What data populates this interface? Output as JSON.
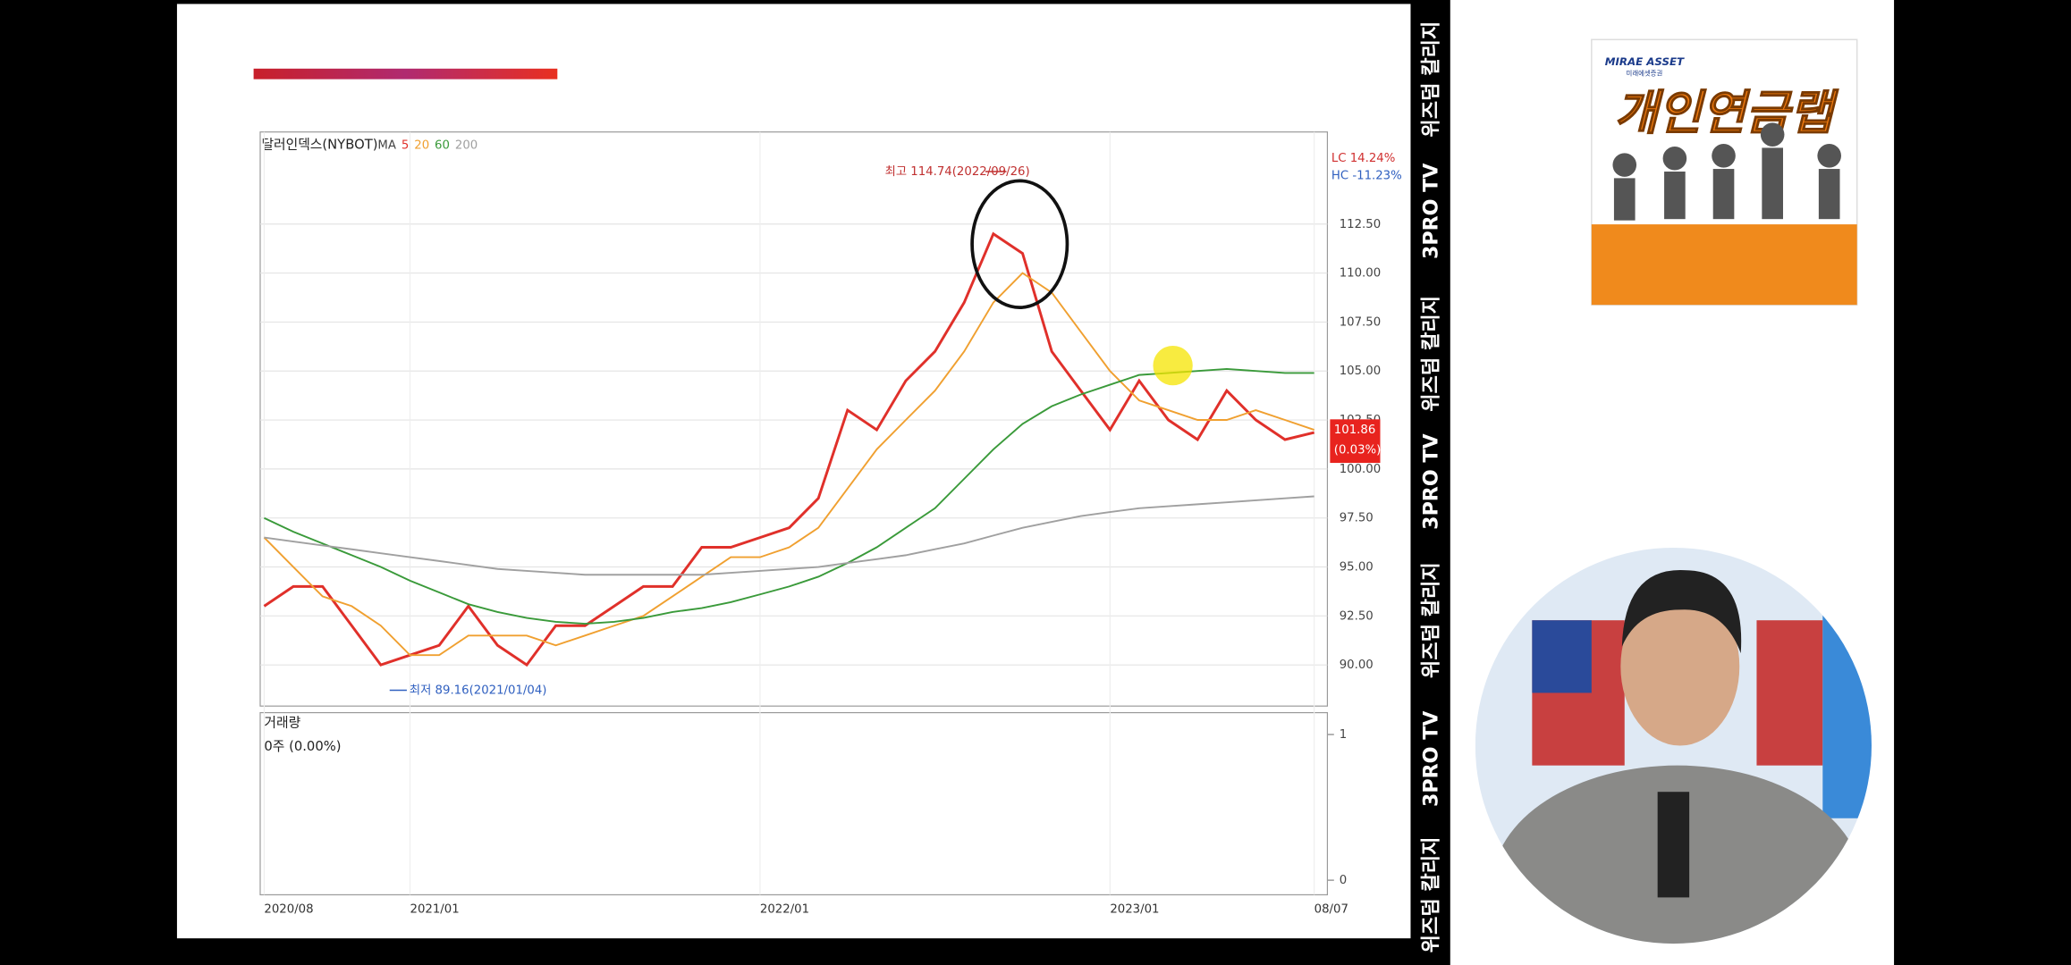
{
  "chart_data": {
    "type": "line",
    "title": "달러인덱스(NYBOT)",
    "legend_label": "MA",
    "categories": [
      "2020/08",
      null,
      null,
      null,
      null,
      "2021/01",
      null,
      null,
      null,
      null,
      null,
      null,
      null,
      null,
      null,
      null,
      null,
      "2022/01",
      null,
      null,
      null,
      null,
      null,
      null,
      null,
      null,
      null,
      null,
      null,
      "2023/01",
      null,
      null,
      null,
      null,
      null,
      null,
      "08/07"
    ],
    "series": [
      {
        "name": "5",
        "color": "#e0302a",
        "values": [
          93,
          94,
          94,
          92,
          90,
          90.5,
          91,
          93,
          91,
          90,
          92,
          92,
          93,
          94,
          94,
          96,
          96,
          96.5,
          97,
          98.5,
          103,
          102,
          104.5,
          106,
          108.5,
          112,
          111,
          106,
          104,
          102,
          104.5,
          102.5,
          101.5,
          104,
          102.5,
          101.5,
          101.86
        ]
      },
      {
        "name": "20",
        "color": "#f0a030",
        "values": [
          96.5,
          95,
          93.5,
          93,
          92,
          90.5,
          90.5,
          91.5,
          91.5,
          91.5,
          91,
          91.5,
          92,
          92.5,
          93.5,
          94.5,
          95.5,
          95.5,
          96,
          97,
          99,
          101,
          102.5,
          104,
          106,
          108.5,
          110,
          109,
          107,
          105,
          103.5,
          103,
          102.5,
          102.5,
          103,
          102.5,
          102
        ]
      },
      {
        "name": "60",
        "color": "#3a9a3a",
        "values": [
          97.5,
          96.8,
          96.2,
          95.6,
          95,
          94.3,
          93.7,
          93.1,
          92.7,
          92.4,
          92.2,
          92.1,
          92.2,
          92.4,
          92.7,
          92.9,
          93.2,
          93.6,
          94,
          94.5,
          95.2,
          96,
          97,
          98,
          99.5,
          101,
          102.3,
          103.2,
          103.8,
          104.3,
          104.8,
          104.9,
          105,
          105.1,
          105,
          104.9,
          104.9
        ]
      },
      {
        "name": "200",
        "color": "#a0a0a0",
        "values": [
          96.5,
          96.3,
          96.1,
          95.9,
          95.7,
          95.5,
          95.3,
          95.1,
          94.9,
          94.8,
          94.7,
          94.6,
          94.6,
          94.6,
          94.6,
          94.6,
          94.7,
          94.8,
          94.9,
          95.0,
          95.2,
          95.4,
          95.6,
          95.9,
          96.2,
          96.6,
          97,
          97.3,
          97.6,
          97.8,
          98,
          98.1,
          98.2,
          98.3,
          98.4,
          98.5,
          98.6
        ]
      }
    ],
    "ylim": [
      87.9,
      117.2
    ],
    "yticks": [
      {
        "value": 90,
        "label": "90.00"
      },
      {
        "value": 92.5,
        "label": "92.50"
      },
      {
        "value": 95,
        "label": "95.00"
      },
      {
        "value": 97.5,
        "label": "97.50"
      },
      {
        "value": 100,
        "label": "100.00"
      },
      {
        "value": 102.5,
        "label": "102.50"
      },
      {
        "value": 105,
        "label": "105.00"
      },
      {
        "value": 107.5,
        "label": "107.50"
      },
      {
        "value": 110,
        "label": "110.00"
      },
      {
        "value": 112.5,
        "label": "112.50"
      }
    ],
    "grid": true,
    "high_annotation": "최고 114.74(2022/09/26)",
    "low_annotation": "최저 89.16(2021/01/04)",
    "last_price": {
      "value": 101.86,
      "change": "(0.03%)"
    },
    "lc": "LC  14.24%",
    "hc": "HC -11.23%",
    "volume_title": "거래량",
    "volume_value": "0주 (0.00%)",
    "volume_ylim": [
      -0.1,
      1.15
    ],
    "volume_yticks": [
      0,
      1
    ]
  },
  "sidebar": {
    "labels": [
      "위즈덤 칼리지",
      "3PRO TV",
      "위즈덤 칼리지",
      "3PRO TV",
      "위즈덤 칼리지",
      "3PRO TV",
      "위즈덤 칼리지"
    ]
  },
  "ad": {
    "brand": "MIRAE ASSET",
    "company": "미래에셋증권",
    "product": "개인연금랩"
  }
}
